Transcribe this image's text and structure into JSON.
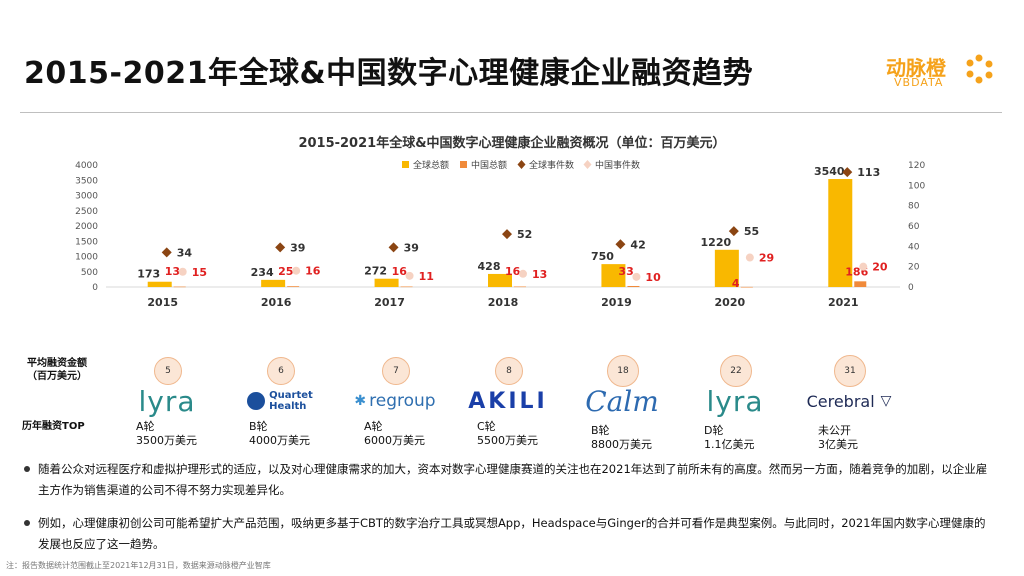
{
  "page": {
    "title": "2015-2021年全球&中国数字心理健康企业融资趋势",
    "brand_name": "动脉橙",
    "brand_sub": "VBDATA"
  },
  "chart_data": {
    "type": "bar",
    "title": "2015-2021年全球&中国数字心理健康企业融资概况（单位：百万美元）",
    "categories": [
      "2015",
      "2016",
      "2017",
      "2018",
      "2019",
      "2020",
      "2021"
    ],
    "ylim_left": [
      0,
      4000
    ],
    "yticks_left": [
      "4000",
      "3500",
      "3000",
      "2500",
      "2000",
      "1500",
      "1000",
      "500",
      "0"
    ],
    "ylim_right": [
      0,
      120
    ],
    "yticks_right": [
      "120",
      "100",
      "80",
      "60",
      "40",
      "20",
      "0"
    ],
    "legend_position": "top",
    "series": [
      {
        "name": "全球总额",
        "kind": "bar",
        "axis": "left",
        "color": "#f9b800",
        "values": [
          173,
          234,
          272,
          428,
          750,
          1220,
          3540
        ]
      },
      {
        "name": "中国总额",
        "kind": "bar",
        "axis": "left",
        "color": "#f08a3a",
        "values": [
          13,
          25,
          16,
          16,
          33,
          4,
          186
        ]
      },
      {
        "name": "全球事件数",
        "kind": "scatter",
        "axis": "right",
        "color": "#8b4513",
        "values": [
          34,
          39,
          39,
          52,
          42,
          55,
          113
        ]
      },
      {
        "name": "中国事件数",
        "kind": "scatter",
        "axis": "right",
        "color": "#f6d2c2",
        "values": [
          15,
          16,
          11,
          13,
          10,
          29,
          20
        ]
      }
    ]
  },
  "funding": {
    "avg_label": "平均融资金额\n（百万美元）",
    "top_label": "历年融资TOP",
    "items": [
      {
        "avg": "5",
        "logo": "lyra",
        "round": "A轮",
        "amount": "3500万美元"
      },
      {
        "avg": "6",
        "logo": "Quartet Health",
        "round": "B轮",
        "amount": "4000万美元"
      },
      {
        "avg": "7",
        "logo": "regroup",
        "round": "A轮",
        "amount": "6000万美元"
      },
      {
        "avg": "8",
        "logo": "AKILI",
        "round": "C轮",
        "amount": "5500万美元"
      },
      {
        "avg": "18",
        "logo": "Calm",
        "round": "B轮",
        "amount": "8800万美元"
      },
      {
        "avg": "22",
        "logo": "lyra",
        "round": "D轮",
        "amount": "1.1亿美元"
      },
      {
        "avg": "31",
        "logo": "Cerebral",
        "round": "未公开",
        "amount": "3亿美元"
      }
    ]
  },
  "bullets": [
    "随着公众对远程医疗和虚拟护理形式的适应，以及对心理健康需求的加大，资本对数字心理健康赛道的关注也在2021年达到了前所未有的高度。然而另一方面，随着竞争的加剧，以企业雇主方作为销售渠道的公司不得不努力实现差异化。",
    "例如，心理健康初创公司可能希望扩大产品范围，吸纳更多基于CBT的数字治疗工具或冥想App，Headspace与Ginger的合并可看作是典型案例。与此同时，2021年国内数字心理健康的发展也反应了这一趋势。"
  ],
  "note": "注：报告数据统计范围截止至2021年12月31日，数据来源动脉橙产业智库"
}
